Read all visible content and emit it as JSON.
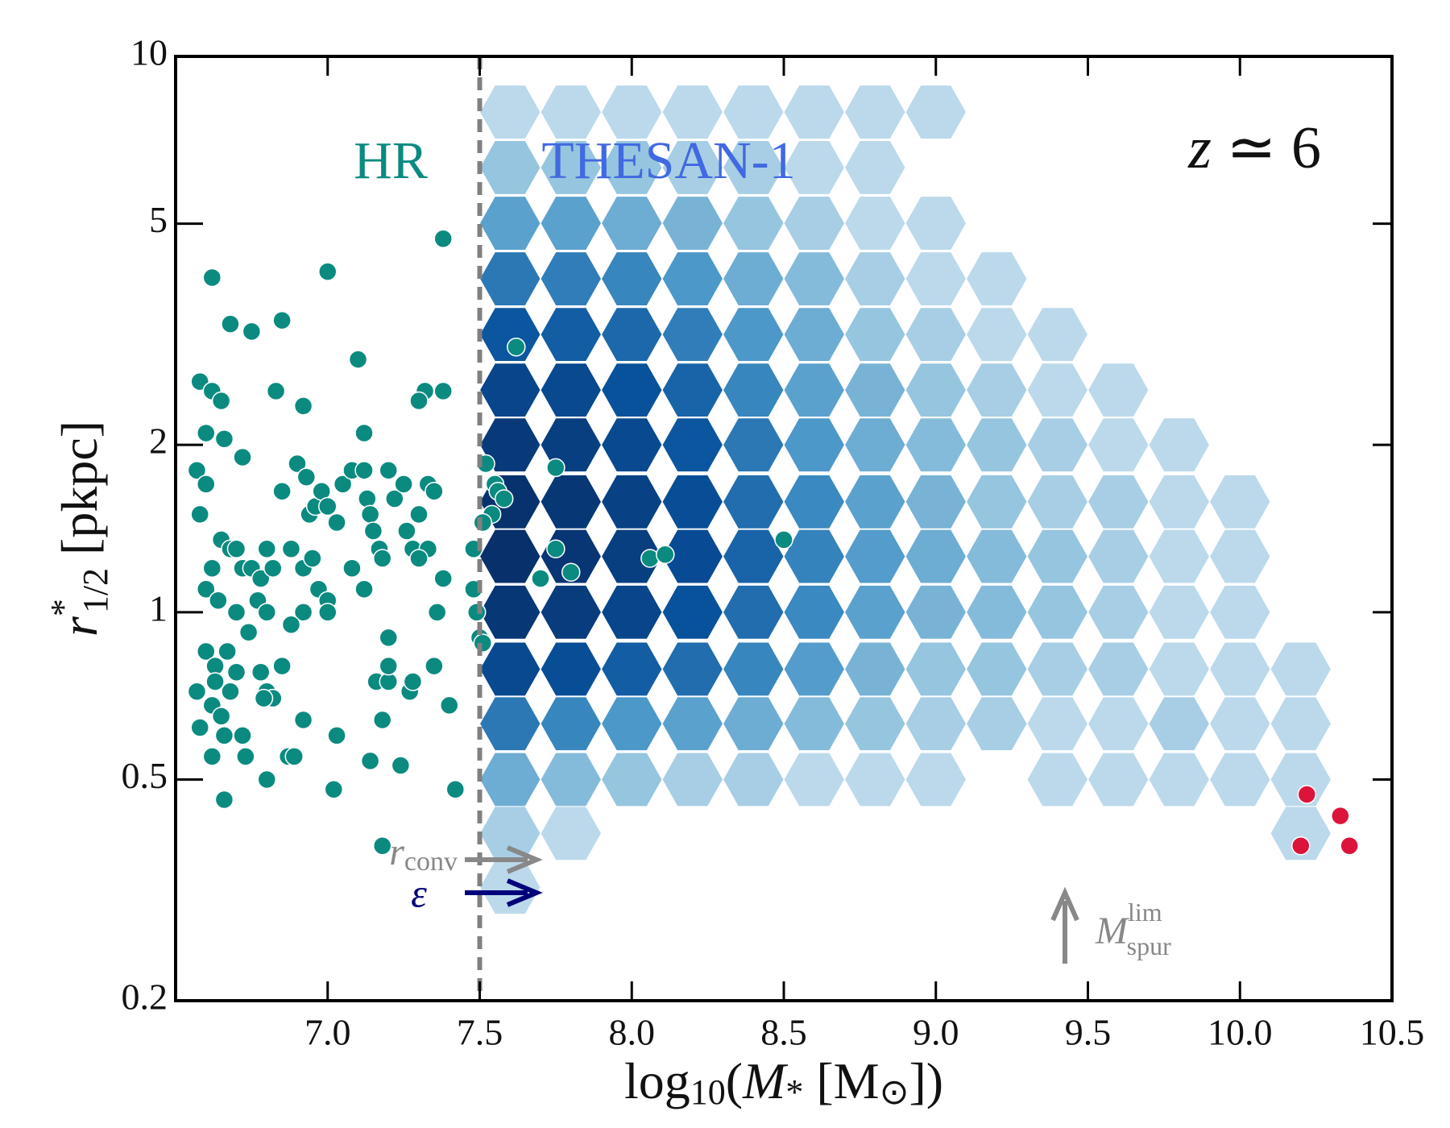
{
  "chart_data": {
    "type": "hexbin_scatter",
    "xlabel_parts": [
      "log",
      "10",
      "(",
      "M",
      "*",
      " [M",
      "⊙",
      "])"
    ],
    "ylabel_parts": [
      "r",
      "*",
      "1/2",
      " [pkpc]"
    ],
    "xlim": [
      6.5,
      10.5
    ],
    "ylim": [
      0.2,
      10
    ],
    "ylog": true,
    "xticks": [
      {
        "value": 7,
        "label": "7.0"
      },
      7.5,
      {
        "value": 8,
        "label": "8.0"
      },
      8.5,
      {
        "value": 9,
        "label": "9.0"
      },
      9.5,
      {
        "value": 10,
        "label": "10.0"
      },
      10.5
    ],
    "yticks": [
      0.2,
      0.5,
      1,
      2,
      5,
      10
    ],
    "vline": 7.5,
    "annotations": {
      "hr": "HR",
      "thesan": "THESAN-1",
      "z": [
        "z",
        " ≃ 6"
      ],
      "r_conv": [
        "r",
        "conv"
      ],
      "eps": "ε",
      "m_spur": [
        "M",
        "lim",
        "spur"
      ]
    },
    "hexbin": {
      "colormap": "Blues",
      "x": [
        7.6,
        7.8,
        8.0,
        8.2,
        8.4,
        8.6,
        8.8,
        9.0,
        9.2,
        9.4,
        9.6,
        9.8,
        10.0,
        10.2
      ],
      "y": [
        0.32,
        0.4,
        0.5,
        0.63,
        0.79,
        1.0,
        1.26,
        1.58,
        2.0,
        2.51,
        3.16,
        3.98,
        5.01,
        6.31,
        7.94
      ],
      "counts": [
        [
          1,
          0,
          0,
          0,
          0,
          0,
          0,
          0,
          0,
          0,
          0,
          0,
          0,
          0
        ],
        [
          2,
          1,
          0,
          0,
          0,
          0,
          0,
          0,
          0,
          0,
          0,
          0,
          0,
          1
        ],
        [
          6,
          4,
          3,
          2,
          2,
          1,
          1,
          1,
          0,
          1,
          1,
          1,
          1,
          1
        ],
        [
          20,
          15,
          10,
          8,
          6,
          4,
          3,
          2,
          2,
          1,
          1,
          2,
          1,
          1
        ],
        [
          60,
          50,
          35,
          25,
          15,
          9,
          5,
          3,
          3,
          2,
          2,
          1,
          1,
          1
        ],
        [
          120,
          100,
          70,
          45,
          25,
          14,
          8,
          5,
          4,
          3,
          2,
          1,
          1,
          0
        ],
        [
          160,
          130,
          90,
          55,
          30,
          16,
          9,
          6,
          4,
          3,
          2,
          1,
          1,
          0
        ],
        [
          150,
          120,
          80,
          50,
          25,
          14,
          8,
          5,
          3,
          2,
          2,
          1,
          1,
          0
        ],
        [
          110,
          90,
          60,
          40,
          20,
          10,
          6,
          4,
          3,
          2,
          1,
          1,
          0,
          0
        ],
        [
          70,
          60,
          45,
          30,
          15,
          8,
          5,
          3,
          2,
          1,
          1,
          0,
          0,
          0
        ],
        [
          40,
          35,
          28,
          18,
          10,
          6,
          3,
          2,
          1,
          1,
          0,
          0,
          0,
          0
        ],
        [
          20,
          18,
          15,
          10,
          6,
          4,
          2,
          1,
          1,
          0,
          0,
          0,
          0,
          0
        ],
        [
          8,
          8,
          6,
          5,
          3,
          2,
          1,
          1,
          0,
          0,
          0,
          0,
          0,
          0
        ],
        [
          3,
          3,
          3,
          2,
          2,
          1,
          1,
          0,
          0,
          0,
          0,
          0,
          0,
          0
        ],
        [
          1,
          1,
          1,
          1,
          1,
          1,
          1,
          1,
          0,
          0,
          0,
          0,
          0,
          0
        ]
      ]
    },
    "series": [
      {
        "name": "HR",
        "color": "#0b8a80",
        "x": [
          6.62,
          6.68,
          6.75,
          6.58,
          6.62,
          6.65,
          6.6,
          6.66,
          6.72,
          6.85,
          6.83,
          6.92,
          7.0,
          7.1,
          7.38,
          7.32,
          7.38,
          7.3,
          7.12,
          6.57,
          6.6,
          6.58,
          6.65,
          6.68,
          6.7,
          6.72,
          6.62,
          6.6,
          6.64,
          6.7,
          6.75,
          6.78,
          6.8,
          6.82,
          6.77,
          6.8,
          6.74,
          6.67,
          6.6,
          6.63,
          6.7,
          6.63,
          6.68,
          6.57,
          6.62,
          6.65,
          6.66,
          6.58,
          6.62,
          6.66,
          6.72,
          6.73,
          6.8,
          6.78,
          6.8,
          6.82,
          6.79,
          6.85,
          6.87,
          6.89,
          6.92,
          7.02,
          7.03,
          7.14,
          7.18,
          7.18,
          7.24,
          7.27,
          7.35,
          7.4,
          7.42,
          7.2,
          7.28,
          7.16,
          7.2,
          6.85,
          6.9,
          6.93,
          6.94,
          6.96,
          6.98,
          7.0,
          7.03,
          7.05,
          7.08,
          7.12,
          7.13,
          7.14,
          7.15,
          7.17,
          7.2,
          7.22,
          7.25,
          7.26,
          7.28,
          7.3,
          7.33,
          7.35,
          7.33,
          7.3,
          7.36,
          7.38,
          6.88,
          6.92,
          6.95,
          6.97,
          7.0,
          7.0,
          6.92,
          6.88,
          7.08,
          7.12,
          7.18,
          7.2,
          7.48,
          7.48,
          7.49,
          7.5,
          7.62,
          7.52,
          7.75,
          7.55,
          7.56,
          7.58,
          7.54,
          7.51,
          7.75,
          8.06,
          8.11,
          8.5,
          7.7,
          7.8,
          7.51
        ],
        "y": [
          4.0,
          3.3,
          3.2,
          2.6,
          2.5,
          2.4,
          2.1,
          2.05,
          1.9,
          3.35,
          2.5,
          2.35,
          4.1,
          2.85,
          4.7,
          2.5,
          2.5,
          2.4,
          2.1,
          1.8,
          1.7,
          1.5,
          1.35,
          1.3,
          1.3,
          1.2,
          1.2,
          1.1,
          1.05,
          1.0,
          1.2,
          1.15,
          1.3,
          1.2,
          1.05,
          1.0,
          0.92,
          0.85,
          0.85,
          0.8,
          0.78,
          0.75,
          0.72,
          0.72,
          0.68,
          0.65,
          0.6,
          0.62,
          0.55,
          0.46,
          0.6,
          0.55,
          0.5,
          0.78,
          0.72,
          0.7,
          0.7,
          0.8,
          0.55,
          0.55,
          0.64,
          0.48,
          0.6,
          0.54,
          0.38,
          0.64,
          0.53,
          0.72,
          0.8,
          0.68,
          0.48,
          0.9,
          0.75,
          0.75,
          0.75,
          1.65,
          1.85,
          1.75,
          1.5,
          1.55,
          1.65,
          1.55,
          1.45,
          1.7,
          1.8,
          1.8,
          1.6,
          1.5,
          1.4,
          1.3,
          1.8,
          1.6,
          1.7,
          1.4,
          1.3,
          1.5,
          1.7,
          1.65,
          1.3,
          1.25,
          1.0,
          1.15,
          1.3,
          1.2,
          1.25,
          1.1,
          1.05,
          1.0,
          1.0,
          0.95,
          1.2,
          1.1,
          1.25,
          0.8,
          1.3,
          1.1,
          1.0,
          0.9,
          3.0,
          1.85,
          1.82,
          1.7,
          1.65,
          1.6,
          1.5,
          1.45,
          1.3,
          1.25,
          1.27,
          1.35,
          1.15,
          1.18,
          0.88
        ]
      },
      {
        "name": "",
        "color": "#dc143c",
        "x": [
          10.22,
          10.33,
          10.2,
          10.36
        ],
        "y": [
          0.47,
          0.43,
          0.38,
          0.38
        ]
      }
    ]
  }
}
